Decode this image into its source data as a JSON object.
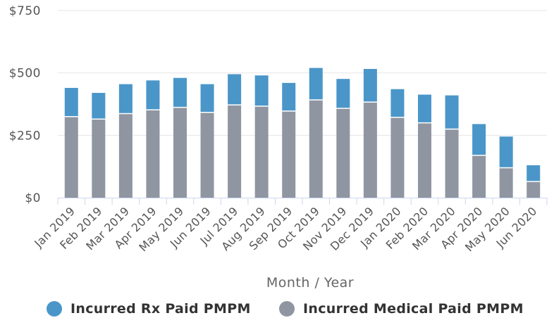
{
  "chart_data": {
    "type": "bar",
    "stacked": true,
    "categories": [
      "Jan 2019",
      "Feb 2019",
      "Mar 2019",
      "Apr 2019",
      "May 2019",
      "Jun 2019",
      "Jul 2019",
      "Aug 2019",
      "Sep 2019",
      "Oct 2019",
      "Nov 2019",
      "Dec 2019",
      "Jan 2020",
      "Feb 2020",
      "Mar 2020",
      "Apr 2020",
      "May 2020",
      "Jun 2020"
    ],
    "series": [
      {
        "name": "Incurred Medical Paid PMPM",
        "color": "#8f96a1",
        "values": [
          325,
          315,
          337,
          352,
          362,
          342,
          372,
          367,
          347,
          392,
          358,
          383,
          322,
          300,
          275,
          170,
          120,
          65
        ]
      },
      {
        "name": "Incurred Rx Paid PMPM",
        "color": "#4a96c9",
        "values": [
          115,
          105,
          118,
          118,
          118,
          113,
          123,
          123,
          113,
          128,
          118,
          133,
          113,
          113,
          135,
          125,
          125,
          65
        ]
      }
    ],
    "xlabel": "Month / Year",
    "ylabel": "",
    "ylim": [
      0,
      750
    ],
    "yticks": [
      0,
      250,
      500,
      750
    ],
    "ytick_labels": [
      "$0",
      "$250",
      "$500",
      "$750"
    ],
    "grid": true,
    "legend_position": "bottom",
    "legend_order": [
      "Incurred Rx Paid PMPM",
      "Incurred Medical Paid PMPM"
    ]
  }
}
